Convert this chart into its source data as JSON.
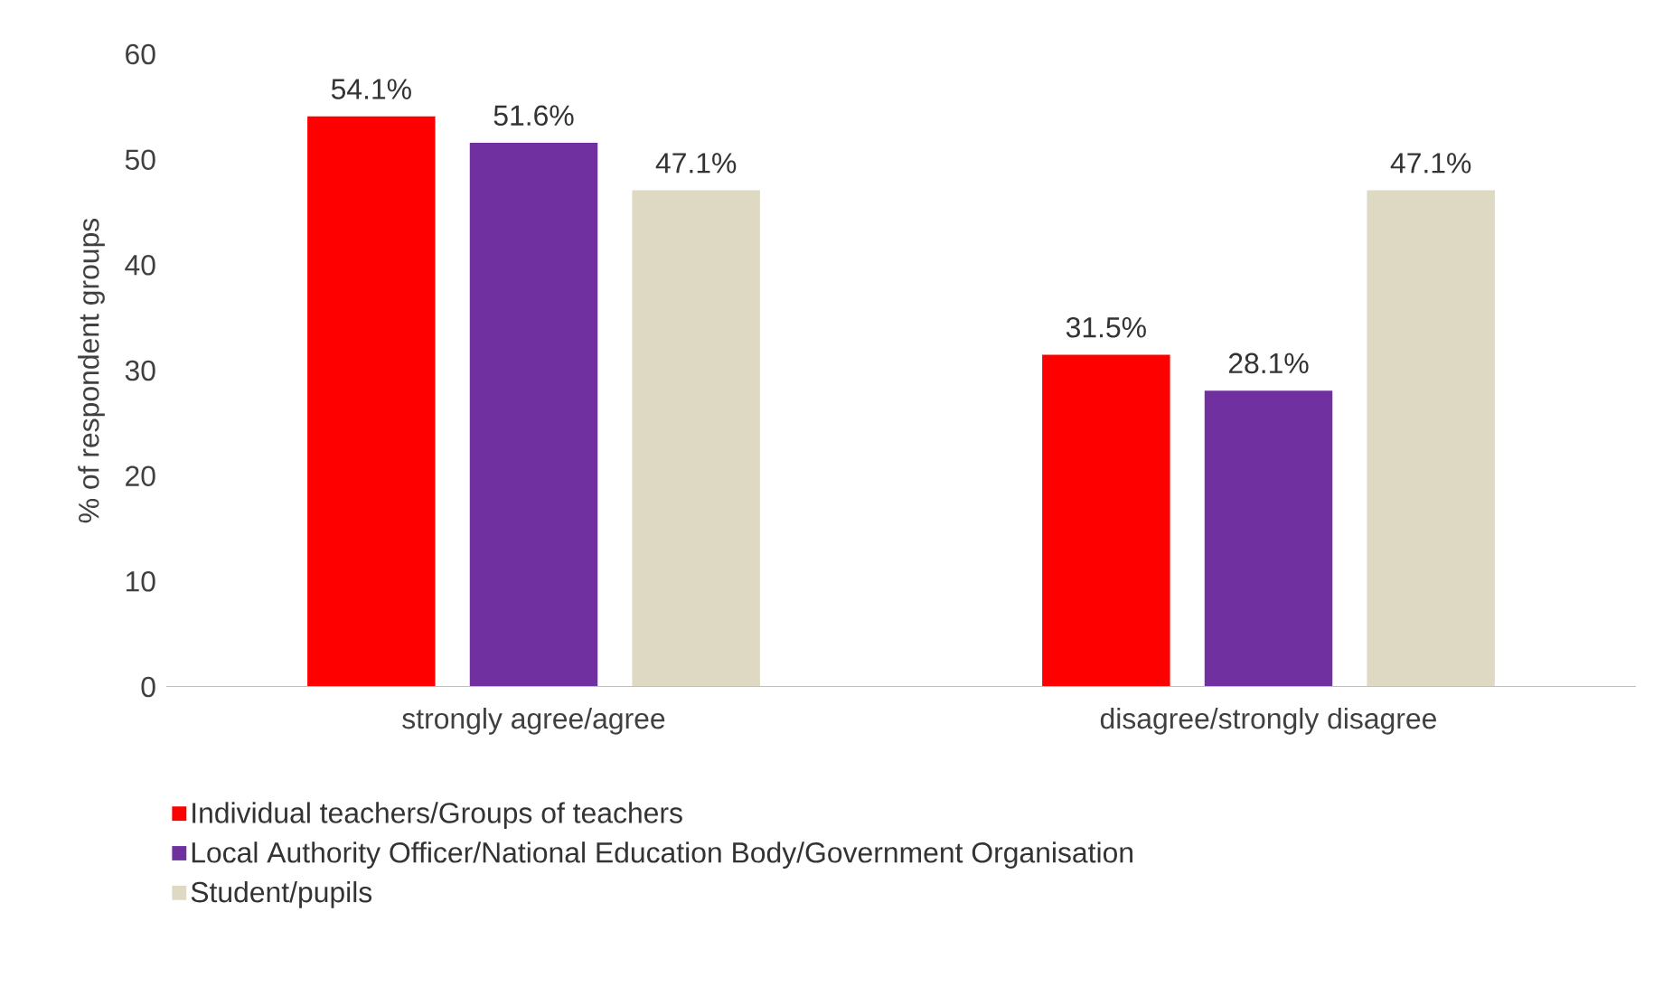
{
  "chart_data": {
    "type": "bar",
    "ylabel": "% of respondent groups",
    "categories": [
      "strongly agree/agree",
      "disagree/strongly disagree"
    ],
    "series": [
      {
        "name": "Individual teachers/Groups of teachers",
        "color": "#ff0000",
        "values": [
          54.1,
          31.5
        ],
        "value_labels": [
          "54.1%",
          "31.5%"
        ]
      },
      {
        "name": "Local Authority Officer/National Education Body/Government Organisation",
        "color": "#7030a0",
        "values": [
          51.6,
          28.1
        ],
        "value_labels": [
          "51.6%",
          "28.1%"
        ]
      },
      {
        "name": "Student/pupils",
        "color": "#ddd9c3",
        "values": [
          47.1,
          47.1
        ],
        "value_labels": [
          "47.1%",
          "47.1%"
        ]
      }
    ],
    "ylim": [
      0,
      60
    ],
    "yticks": [
      0,
      10,
      20,
      30,
      40,
      50,
      60
    ],
    "legend": "bottom"
  }
}
